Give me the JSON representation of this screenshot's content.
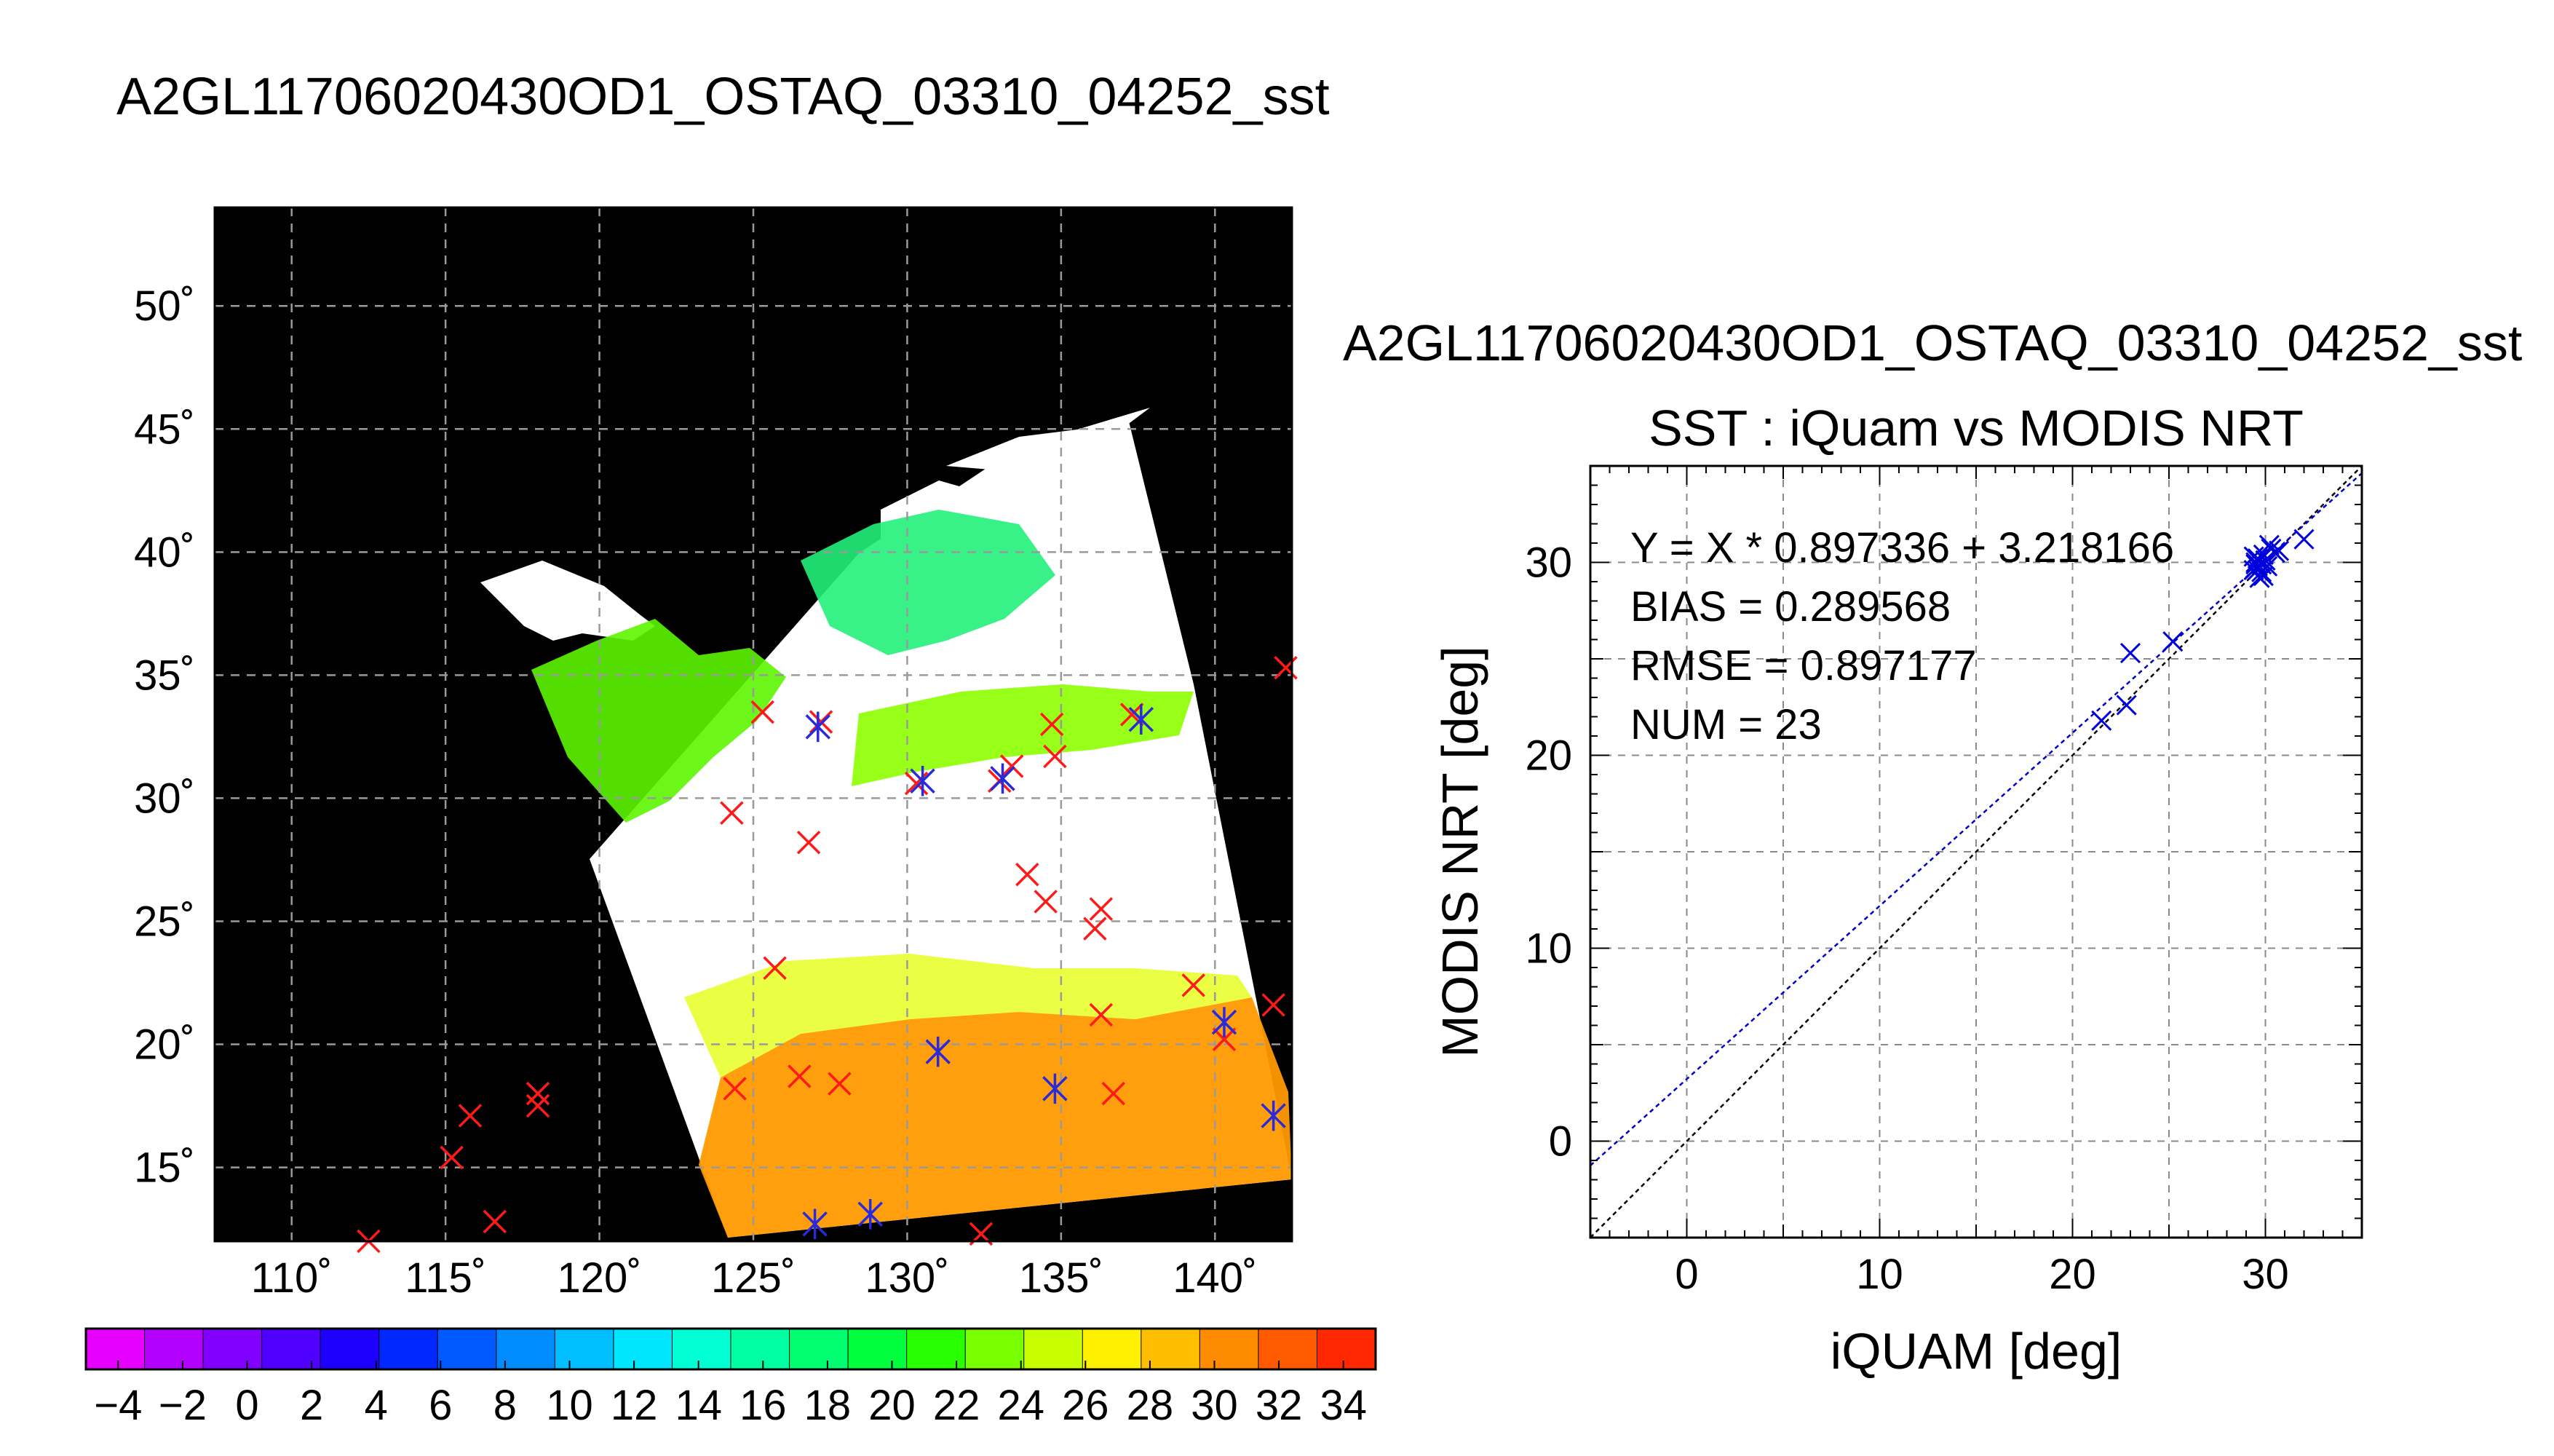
{
  "title": "A2GL11706020430OD1_OSTAQ_03310_04252_sst",
  "chart_data": [
    {
      "type": "heatmap",
      "title": "",
      "description_axes": "lon-lat",
      "xlim": [
        107.5,
        142.5
      ],
      "ylim": [
        12,
        54
      ],
      "x_ticks": [
        110,
        115,
        120,
        125,
        130,
        135,
        140
      ],
      "x_tick_labels": [
        "110˚",
        "115˚",
        "120˚",
        "125˚",
        "130˚",
        "135˚",
        "140˚"
      ],
      "y_ticks": [
        15,
        20,
        25,
        30,
        35,
        40,
        45,
        50
      ],
      "y_tick_labels": [
        "15˚",
        "20˚",
        "25˚",
        "30˚",
        "35˚",
        "40˚",
        "45˚",
        "50˚"
      ],
      "grid": true,
      "background_color": "#000000",
      "colorbar": {
        "vmin": -5,
        "vmax": 35,
        "ticks": [
          -4,
          -2,
          0,
          2,
          4,
          6,
          8,
          10,
          12,
          14,
          16,
          18,
          20,
          22,
          24,
          26,
          28,
          30,
          32,
          34
        ],
        "tick_labels": [
          "−4",
          "−2",
          "0",
          "2",
          "4",
          "6",
          "8",
          "10",
          "12",
          "14",
          "16",
          "18",
          "20",
          "22",
          "24",
          "26",
          "28",
          "30",
          "32",
          "34"
        ],
        "colors": [
          "#e600ff",
          "#b400ff",
          "#8200ff",
          "#5000ff",
          "#1e00ff",
          "#0028ff",
          "#005aff",
          "#008cff",
          "#00beff",
          "#00e6ff",
          "#00ffd2",
          "#00ffa0",
          "#00ff6e",
          "#00ff3c",
          "#28ff00",
          "#78ff00",
          "#c8ff00",
          "#fff000",
          "#ffbe00",
          "#ff8c00",
          "#ff5a00",
          "#ff2800"
        ]
      },
      "swath_color": "#ffffff",
      "iquam_markers_red": [
        [
          112.5,
          12
        ],
        [
          115.2,
          15.4
        ],
        [
          115.8,
          17.1
        ],
        [
          116.6,
          12.8
        ],
        [
          118,
          18
        ],
        [
          118,
          17.5
        ],
        [
          124.3,
          29.4
        ],
        [
          124.4,
          18.2
        ],
        [
          125.3,
          33.5
        ],
        [
          125.7,
          23.1
        ],
        [
          126.5,
          18.7
        ],
        [
          126.8,
          28.2
        ],
        [
          127.2,
          33.1
        ],
        [
          127.8,
          18.4
        ],
        [
          130.3,
          30.6
        ],
        [
          131,
          19.7
        ],
        [
          132.4,
          12.3
        ],
        [
          133,
          30.7
        ],
        [
          133.4,
          31.3
        ],
        [
          133.9,
          26.9
        ],
        [
          134.5,
          25.8
        ],
        [
          134.7,
          33
        ],
        [
          134.8,
          31.7
        ],
        [
          136.1,
          24.7
        ],
        [
          136.3,
          25.5
        ],
        [
          136.3,
          21.2
        ],
        [
          136.7,
          18
        ],
        [
          137.3,
          33.4
        ],
        [
          139.3,
          22.4
        ],
        [
          140.3,
          20.2
        ],
        [
          141.9,
          21.6
        ],
        [
          142.3,
          35.3
        ]
      ],
      "iquam_markers_blue": [
        [
          127.1,
          32.9
        ],
        [
          127,
          12.7
        ],
        [
          128.8,
          13.1
        ],
        [
          130.5,
          30.7
        ],
        [
          131,
          19.7
        ],
        [
          133.1,
          30.8
        ],
        [
          134.8,
          18.2
        ],
        [
          137.6,
          33.2
        ],
        [
          140.3,
          20.9
        ],
        [
          141.9,
          17.1
        ]
      ]
    },
    {
      "type": "scatter",
      "subtitle": "A2GL11706020430OD1_OSTAQ_03310_04252_sst",
      "title": "SST : iQuam vs MODIS NRT",
      "xlabel": "iQUAM [deg]",
      "ylabel": "MODIS NRT [deg]",
      "xlim": [
        -5,
        35
      ],
      "ylim": [
        -5,
        35
      ],
      "x_ticks": [
        0,
        10,
        20,
        30
      ],
      "y_ticks": [
        0,
        10,
        20,
        30
      ],
      "grid": true,
      "annotations": [
        "Y = X * 0.897336 + 3.218166",
        "BIAS = 0.289568",
        "RMSE = 0.897177",
        "NUM = 23"
      ],
      "fit": {
        "slope": 0.897336,
        "intercept": 3.218166,
        "color": "#0000cc"
      },
      "identity_line_color": "#000000",
      "point_color": "#0000dd",
      "points": [
        [
          21.5,
          21.8
        ],
        [
          22.8,
          22.6
        ],
        [
          23,
          25.3
        ],
        [
          25.2,
          25.9
        ],
        [
          29.4,
          30.3
        ],
        [
          29.6,
          29.6
        ],
        [
          29.5,
          30
        ],
        [
          29.8,
          29.5
        ],
        [
          29.9,
          30.4
        ],
        [
          29.7,
          29.2
        ],
        [
          29.5,
          29.9
        ],
        [
          30.1,
          29.8
        ],
        [
          29.6,
          30.2
        ],
        [
          29.8,
          29.9
        ],
        [
          30,
          30.1
        ],
        [
          29.4,
          29.6
        ],
        [
          29.9,
          29.3
        ],
        [
          30.3,
          30.7
        ],
        [
          30.5,
          30.5
        ],
        [
          30.2,
          30.9
        ],
        [
          29.6,
          29.8
        ],
        [
          30.7,
          30.6
        ],
        [
          32,
          31.2
        ]
      ]
    }
  ]
}
